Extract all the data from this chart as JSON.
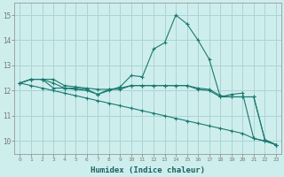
{
  "xlabel": "Humidex (Indice chaleur)",
  "bg_color": "#ceeeed",
  "grid_color": "#aad4d3",
  "line_color": "#1a7a70",
  "xlim": [
    -0.5,
    23.5
  ],
  "ylim": [
    9.5,
    15.5
  ],
  "yticks": [
    10,
    11,
    12,
    13,
    14,
    15
  ],
  "xticks": [
    0,
    1,
    2,
    3,
    4,
    5,
    6,
    7,
    8,
    9,
    10,
    11,
    12,
    13,
    14,
    15,
    16,
    17,
    18,
    19,
    20,
    21,
    22,
    23
  ],
  "lines": [
    {
      "x": [
        0,
        1,
        2,
        3,
        4,
        5,
        6,
        7,
        8,
        9,
        10,
        11,
        12,
        13,
        14,
        15,
        16,
        17,
        18,
        19,
        20,
        21,
        22,
        23
      ],
      "y": [
        12.3,
        12.45,
        12.45,
        12.1,
        12.1,
        12.05,
        12.0,
        11.85,
        12.0,
        12.15,
        12.6,
        12.55,
        13.65,
        13.9,
        15.0,
        14.65,
        14.0,
        13.25,
        11.75,
        11.85,
        11.9,
        10.1,
        10.0,
        9.85
      ]
    },
    {
      "x": [
        0,
        1,
        2,
        3,
        4,
        5,
        6,
        7,
        8,
        9,
        10,
        11,
        12,
        13,
        14,
        15,
        16,
        17,
        18,
        19,
        20,
        21,
        22,
        23
      ],
      "y": [
        12.3,
        12.45,
        12.45,
        12.45,
        12.2,
        12.15,
        12.1,
        12.05,
        12.05,
        12.05,
        12.2,
        12.2,
        12.2,
        12.2,
        12.2,
        12.2,
        12.1,
        12.05,
        11.8,
        11.75,
        11.75,
        11.75,
        10.05,
        9.85
      ]
    },
    {
      "x": [
        0,
        1,
        2,
        3,
        4,
        5,
        6,
        7,
        8,
        9,
        10,
        11,
        12,
        13,
        14,
        15,
        16,
        17,
        18,
        19,
        20,
        21,
        22,
        23
      ],
      "y": [
        12.3,
        12.2,
        12.1,
        12.0,
        11.9,
        11.8,
        11.7,
        11.6,
        11.5,
        11.4,
        11.3,
        11.2,
        11.1,
        11.0,
        10.9,
        10.8,
        10.7,
        10.6,
        10.5,
        10.4,
        10.3,
        10.1,
        10.0,
        9.85
      ]
    },
    {
      "x": [
        0,
        1,
        2,
        3,
        4,
        5,
        6,
        7,
        8,
        9,
        10,
        11,
        12,
        13,
        14,
        15,
        16,
        17,
        18,
        19,
        20,
        21,
        22,
        23
      ],
      "y": [
        12.3,
        12.45,
        12.45,
        12.3,
        12.1,
        12.1,
        12.05,
        11.85,
        12.05,
        12.1,
        12.2,
        12.2,
        12.2,
        12.2,
        12.2,
        12.2,
        12.05,
        12.0,
        11.75,
        11.75,
        11.75,
        11.75,
        10.05,
        9.85
      ]
    }
  ]
}
